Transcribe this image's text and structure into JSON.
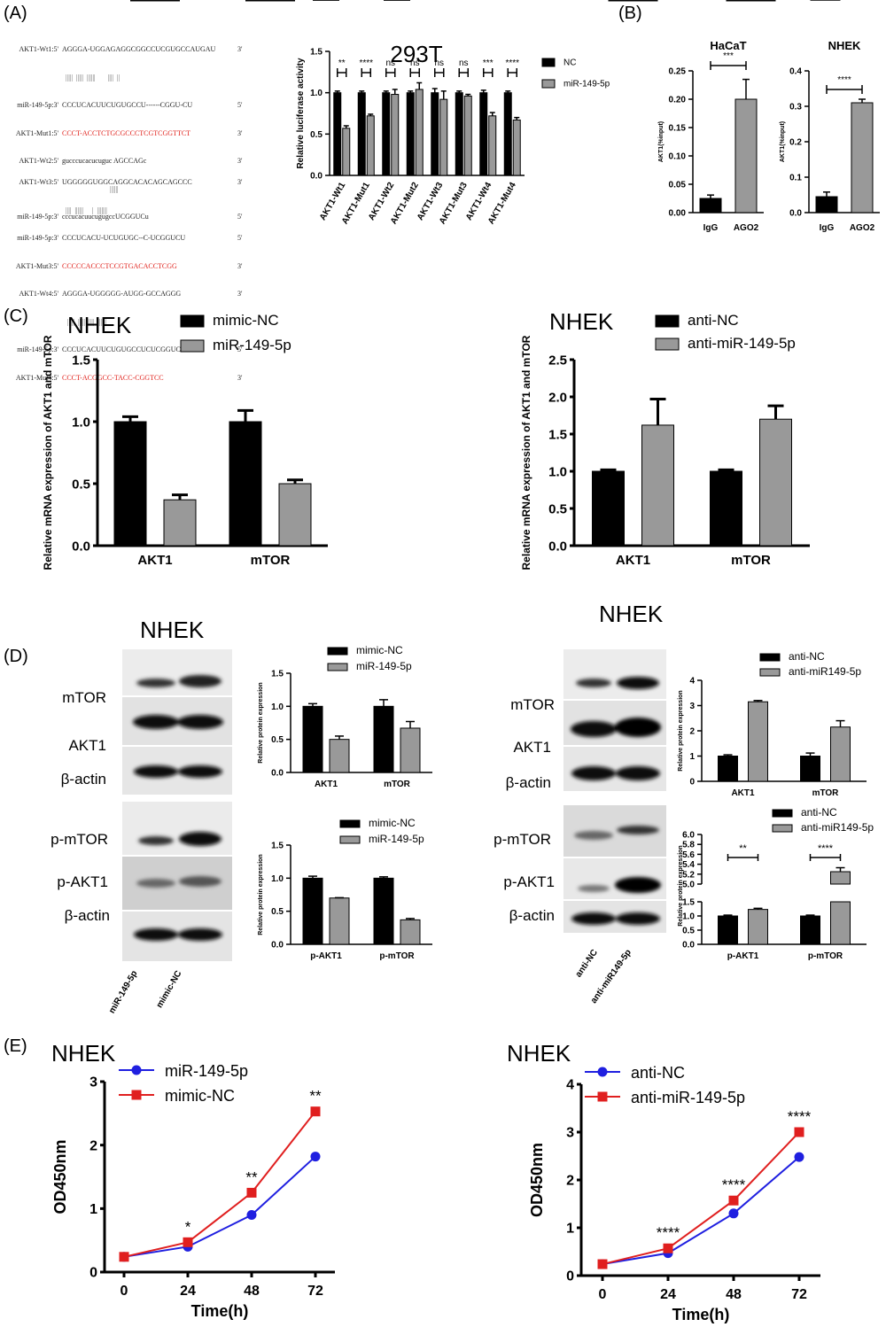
{
  "panels": {
    "A": {
      "label": "(A)",
      "sequences": [
        {
          "name": "AKT1-Wt1:5'",
          "seq": "AGGGA-UGGAGAGGCGGCCUCGUGCCAUGAU",
          "end": "3'",
          "color": "black"
        },
        {
          "name": "miR-149-5p:3'",
          "seq": "CCCUCACUUCUGUGCCU------CGGU-CU",
          "end": "5'",
          "color": "black"
        },
        {
          "name": "AKT1-Mut1:5'",
          "seq": "CCCT-ACCTCTGCGCCCTCGTCGGTTCT",
          "end": "3'",
          "color": "red"
        },
        {
          "name": "AKT1-Wt2:5'",
          "seq": "gucccucacucuguc AGCCAGc",
          "end": "3'",
          "color": "black"
        },
        {
          "name": "miR-149-5p:3'",
          "seq": "cccucacuucugugccUCGGUCu",
          "end": "5'",
          "color": "black"
        },
        {
          "name": "AKT1-Wt3:5'",
          "seq": "UGGGGGUGGCAGGCACACAGCAGCCC",
          "end": "3'",
          "color": "black"
        },
        {
          "name": "miR-149-5p:3'",
          "seq": "CCCUCACU-UCUGUGC--C-UCGGUCU",
          "end": "5'",
          "color": "black"
        },
        {
          "name": "AKT1-Mut3:5'",
          "seq": "CCCCCACCCTCCGTGACACCTCGG",
          "end": "3'",
          "color": "red"
        },
        {
          "name": "AKT1-Wt4:5'",
          "seq": "AGGGA-UGGGGG-AUGG-GCCAGGG",
          "end": "3'",
          "color": "black"
        },
        {
          "name": "miR-149-5p:3'",
          "seq": "CCCUCACUUCUGUGCCUCUCGGUCU",
          "end": "5'",
          "color": "black"
        },
        {
          "name": "AKT1-Mut4:5'",
          "seq": "CCCT-ACGGCC-TACC-CGGTCC",
          "end": "3'",
          "color": "red"
        }
      ],
      "chart": {
        "type": "bar",
        "title": "293T",
        "ylabel": "Relative luciferase activity",
        "ylim": [
          0,
          1.5
        ],
        "yticks": [
          "0.0",
          "0.5",
          "1.0",
          "1.5"
        ],
        "categories": [
          "AKT1-Wt1",
          "AKT1-Mut1",
          "AKT1-Wt2",
          "AKT1-Mut2",
          "AKT1-Wt3",
          "AKT1-Mut3",
          "AKT1-Wt4",
          "AKT1-Mut4"
        ],
        "significance": [
          "**",
          "****",
          "ns",
          "ns",
          "ns",
          "ns",
          "***",
          "****"
        ],
        "series": [
          {
            "name": "NC",
            "color": "#000000",
            "values": [
              1.0,
              1.0,
              1.0,
              1.0,
              1.0,
              1.0,
              1.0,
              1.0
            ],
            "errors": [
              0.02,
              0.02,
              0.02,
              0.02,
              0.05,
              0.02,
              0.03,
              0.02
            ]
          },
          {
            "name": "miR-149-5p",
            "color": "#999999",
            "values": [
              0.57,
              0.72,
              0.98,
              1.04,
              0.92,
              0.96,
              0.72,
              0.67
            ],
            "errors": [
              0.03,
              0.02,
              0.06,
              0.08,
              0.1,
              0.02,
              0.04,
              0.03
            ]
          }
        ]
      }
    },
    "B": {
      "label": "(B)",
      "charts": [
        {
          "type": "bar",
          "title": "HaCaT",
          "ylabel": "AKT1(%input)",
          "ylim": [
            0,
            0.25
          ],
          "yticks": [
            "0.00",
            "0.05",
            "0.10",
            "0.15",
            "0.20",
            "0.25"
          ],
          "categories": [
            "IgG",
            "AGO2"
          ],
          "values": [
            0.025,
            0.2
          ],
          "errors": [
            0.006,
            0.035
          ],
          "significance": "***",
          "colors": [
            "#000000",
            "#999999"
          ]
        },
        {
          "type": "bar",
          "title": "NHEK",
          "ylabel": "AKT1(%input)",
          "ylim": [
            0,
            0.4
          ],
          "yticks": [
            "0.0",
            "0.1",
            "0.2",
            "0.3",
            "0.4"
          ],
          "categories": [
            "IgG",
            "AGO2"
          ],
          "values": [
            0.045,
            0.31
          ],
          "errors": [
            0.013,
            0.01
          ],
          "significance": "****",
          "colors": [
            "#000000",
            "#999999"
          ]
        }
      ]
    },
    "C": {
      "label": "(C)",
      "charts": [
        {
          "type": "bar",
          "title": "NHEK",
          "ylabel": "Relative mRNA expression of AKT1 and mTOR",
          "ylim": [
            0,
            1.5
          ],
          "yticks": [
            "0.0",
            "0.5",
            "1.0",
            "1.5"
          ],
          "categories": [
            "AKT1",
            "mTOR"
          ],
          "significance": [
            "****",
            "*"
          ],
          "series": [
            {
              "name": "mimic-NC",
              "color": "#000000",
              "values": [
                1.0,
                1.0
              ],
              "errors": [
                0.04,
                0.09
              ]
            },
            {
              "name": "miR-149-5p",
              "color": "#999999",
              "values": [
                0.37,
                0.5
              ],
              "errors": [
                0.04,
                0.03
              ]
            }
          ]
        },
        {
          "type": "bar",
          "title": "NHEK",
          "ylabel": "Relative mRNA expression of AKT1 and mTOR",
          "ylim": [
            0,
            2.5
          ],
          "yticks": [
            "0.0",
            "0.5",
            "1.0",
            "1.5",
            "2.0",
            "2.5"
          ],
          "categories": [
            "AKT1",
            "mTOR"
          ],
          "significance": [
            "*",
            "**"
          ],
          "series": [
            {
              "name": "anti-NC",
              "color": "#000000",
              "values": [
                1.0,
                1.0
              ],
              "errors": [
                0.02,
                0.02
              ]
            },
            {
              "name": "anti-miR-149-5p",
              "color": "#999999",
              "values": [
                1.62,
                1.7
              ],
              "errors": [
                0.35,
                0.18
              ]
            }
          ]
        }
      ]
    },
    "D": {
      "label": "(D)",
      "left": {
        "title": "NHEK",
        "blot_labels": [
          "mTOR",
          "AKT1",
          "β-actin",
          "p-mTOR",
          "p-AKT1",
          "β-actin"
        ],
        "lanes": [
          "miR-149-5p",
          "mimic-NC"
        ],
        "charts": [
          {
            "type": "bar",
            "ylabel": "Relative protein expression",
            "ylim": [
              0,
              1.5
            ],
            "yticks": [
              "0.0",
              "0.5",
              "1.0",
              "1.5"
            ],
            "categories": [
              "AKT1",
              "mTOR"
            ],
            "significance": [
              "***",
              "*"
            ],
            "series": [
              {
                "name": "mimic-NC",
                "color": "#000000",
                "values": [
                  1.0,
                  1.0
                ],
                "errors": [
                  0.04,
                  0.1
                ]
              },
              {
                "name": "miR-149-5p",
                "color": "#999999",
                "values": [
                  0.5,
                  0.67
                ],
                "errors": [
                  0.05,
                  0.1
                ]
              }
            ]
          },
          {
            "type": "bar",
            "ylabel": "Relative protein expression",
            "ylim": [
              0,
              1.5
            ],
            "yticks": [
              "0.0",
              "0.5",
              "1.0",
              "1.5"
            ],
            "categories": [
              "p-AKT1",
              "p-mTOR"
            ],
            "significance": [
              "**",
              "****"
            ],
            "series": [
              {
                "name": "mimic-NC",
                "color": "#000000",
                "values": [
                  1.0,
                  1.0
                ],
                "errors": [
                  0.03,
                  0.02
                ]
              },
              {
                "name": "miR-149-5p",
                "color": "#999999",
                "values": [
                  0.7,
                  0.37
                ],
                "errors": [
                  0.005,
                  0.02
                ]
              }
            ]
          }
        ]
      },
      "right": {
        "title": "NHEK",
        "blot_labels": [
          "mTOR",
          "AKT1",
          "β-actin",
          "p-mTOR",
          "p-AKT1",
          "β-actin"
        ],
        "lanes": [
          "anti-NC",
          "anti-miR149-5p"
        ],
        "charts": [
          {
            "type": "bar",
            "ylabel": "Relative protein expression",
            "ylim": [
              0,
              4
            ],
            "yticks": [
              "0",
              "1",
              "2",
              "3",
              "4"
            ],
            "categories": [
              "AKT1",
              "mTOR"
            ],
            "significance": [
              "****",
              "**"
            ],
            "series": [
              {
                "name": "anti-NC",
                "color": "#000000",
                "values": [
                  1.0,
                  1.0
                ],
                "errors": [
                  0.05,
                  0.12
                ]
              },
              {
                "name": "anti-miR149-5p",
                "color": "#999999",
                "values": [
                  3.15,
                  2.15
                ],
                "errors": [
                  0.05,
                  0.25
                ]
              }
            ]
          },
          {
            "type": "bar",
            "ylabel": "Relative protein expression",
            "broken_axis": true,
            "yticks_lower": [
              "0.0",
              "0.5",
              "1.0",
              "1.5"
            ],
            "yticks_upper": [
              "5.0",
              "5.2",
              "5.4",
              "5.6",
              "5.8",
              "6.0"
            ],
            "categories": [
              "p-AKT1",
              "p-mTOR"
            ],
            "significance": [
              "**",
              "****"
            ],
            "series": [
              {
                "name": "anti-NC",
                "color": "#000000",
                "values": [
                  1.0,
                  1.0
                ],
                "errors": [
                  0.03,
                  0.03
                ]
              },
              {
                "name": "anti-miR149-5p",
                "color": "#999999",
                "values": [
                  1.23,
                  5.25
                ],
                "errors": [
                  0.04,
                  0.08
                ]
              }
            ]
          }
        ]
      }
    },
    "E": {
      "label": "(E)",
      "charts": [
        {
          "type": "line",
          "title": "NHEK",
          "xlabel": "Time(h)",
          "ylabel": "OD450nm",
          "x": [
            0,
            24,
            48,
            72
          ],
          "ylim": [
            0,
            3
          ],
          "yticks": [
            "0",
            "1",
            "2",
            "3"
          ],
          "significance": [
            "*",
            "**",
            "**"
          ],
          "series": [
            {
              "name": "miR-149-5p",
              "color": "#1f1fe0",
              "marker": "circle",
              "values": [
                0.24,
                0.4,
                0.9,
                1.82
              ]
            },
            {
              "name": "mimic-NC",
              "color": "#e01f1f",
              "marker": "square",
              "values": [
                0.24,
                0.47,
                1.25,
                2.53
              ]
            }
          ]
        },
        {
          "type": "line",
          "title": "NHEK",
          "xlabel": "Time(h)",
          "ylabel": "OD450nm",
          "x": [
            0,
            24,
            48,
            72
          ],
          "ylim": [
            0,
            4
          ],
          "yticks": [
            "0",
            "1",
            "2",
            "3",
            "4"
          ],
          "significance": [
            "****",
            "****",
            "****"
          ],
          "series": [
            {
              "name": "anti-NC",
              "color": "#1f1fe0",
              "marker": "circle",
              "values": [
                0.24,
                0.47,
                1.3,
                2.48
              ]
            },
            {
              "name": "anti-miR-149-5p",
              "color": "#e01f1f",
              "marker": "square",
              "values": [
                0.24,
                0.57,
                1.57,
                3.0
              ]
            }
          ]
        }
      ]
    }
  }
}
